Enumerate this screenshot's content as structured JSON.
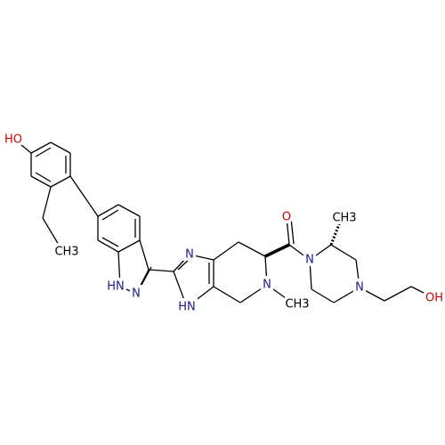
{
  "atoms": [
    {
      "label": "HO"
    },
    {
      "label": "CH3"
    },
    {
      "label": "HN"
    },
    {
      "label": "N"
    },
    {
      "label": "N"
    },
    {
      "label": "HN"
    },
    {
      "label": "N"
    },
    {
      "label": "CH3"
    },
    {
      "label": "O"
    },
    {
      "label": "N"
    },
    {
      "label": "CH3"
    },
    {
      "label": "N"
    },
    {
      "label": "OH"
    }
  ]
}
